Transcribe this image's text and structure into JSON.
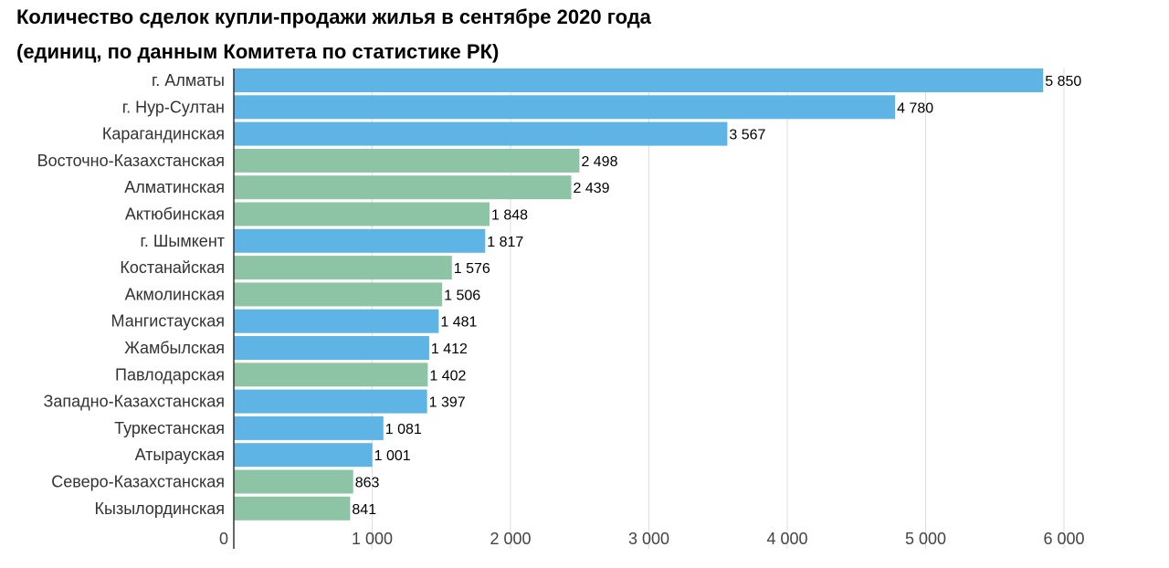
{
  "title_line1": "Количество сделок купли-продажи жилья в сентябре 2020 года",
  "title_line2": "(единиц, по данным Комитета по статистике РК)",
  "colors": {
    "blue": "#5eb4e4",
    "green": "#8ec4a6",
    "grid": "#dddddd",
    "axis": "#333333"
  },
  "chart_data": {
    "type": "bar",
    "orientation": "horizontal",
    "title": "Количество сделок купли-продажи жилья в сентябре 2020 года (единиц, по данным Комитета по статистике РК)",
    "categories": [
      "г. Алматы",
      "г. Нур-Султан",
      "Карагандинская",
      "Восточно-Казахстанская",
      "Алматинская",
      "Актюбинская",
      "г. Шымкент",
      "Костанайская",
      "Акмолинская",
      "Мангистауская",
      "Жамбылская",
      "Павлодарская",
      "Западно-Казахстанская",
      "Туркестанская",
      "Атырауская",
      "Северо-Казахстанская",
      "Кызылординская"
    ],
    "values": [
      5850,
      4780,
      3567,
      2498,
      2439,
      1848,
      1817,
      1576,
      1506,
      1481,
      1412,
      1402,
      1397,
      1081,
      1001,
      863,
      841
    ],
    "value_labels": [
      "5 850",
      "4 780",
      "3 567",
      "2 498",
      "2 439",
      "1 848",
      "1 817",
      "1 576",
      "1 506",
      "1 481",
      "1 412",
      "1 402",
      "1 397",
      "1 081",
      "1 001",
      "863",
      "841"
    ],
    "bar_colors": [
      "blue",
      "blue",
      "blue",
      "green",
      "green",
      "green",
      "blue",
      "green",
      "green",
      "blue",
      "blue",
      "green",
      "blue",
      "blue",
      "blue",
      "green",
      "green"
    ],
    "xlim": [
      0,
      6000
    ],
    "xticks": [
      0,
      1000,
      2000,
      3000,
      4000,
      5000,
      6000
    ],
    "xtick_labels": [
      "0",
      "1 000",
      "2 000",
      "3 000",
      "4 000",
      "5 000",
      "6 000"
    ],
    "grid": true,
    "xlabel": "",
    "ylabel": ""
  }
}
